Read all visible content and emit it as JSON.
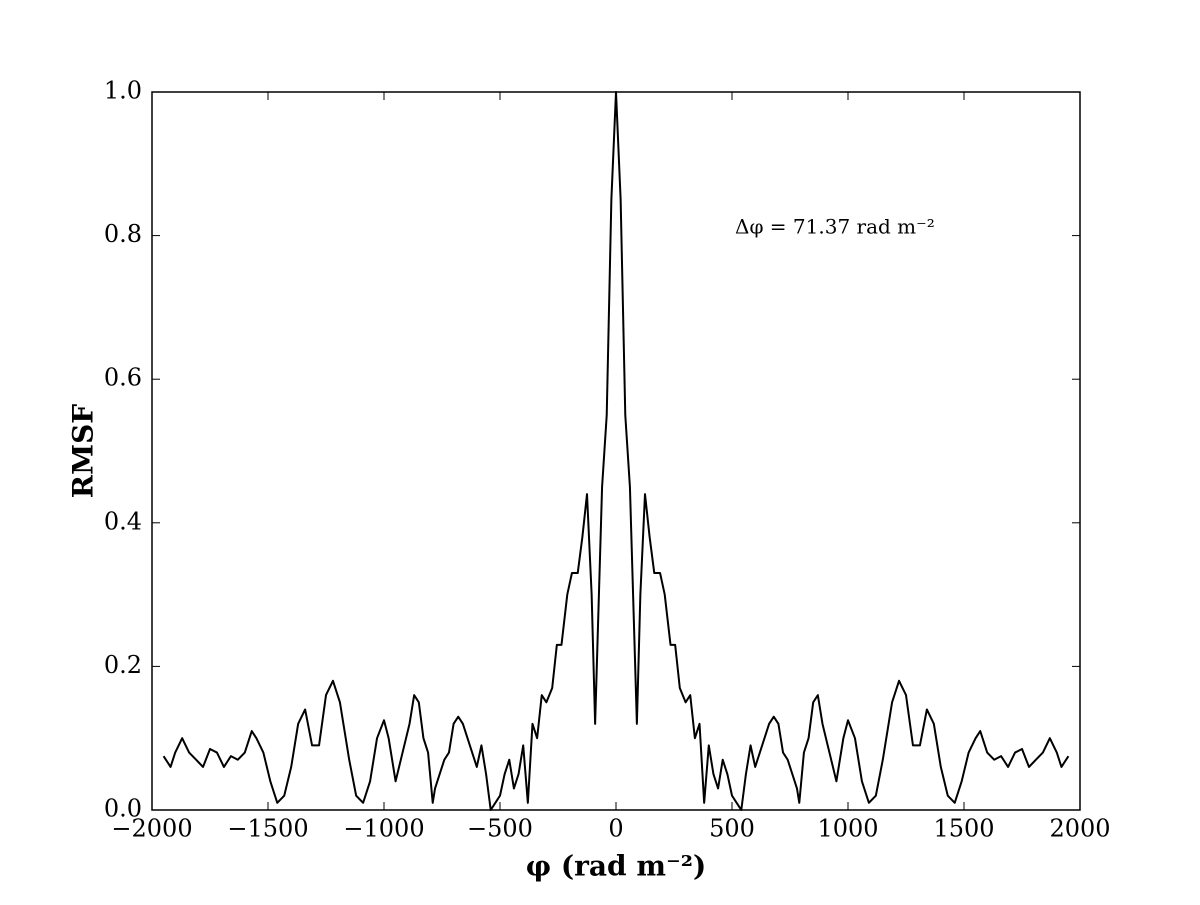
{
  "chart_data": {
    "type": "line",
    "xlabel": "φ (rad m⁻²)",
    "ylabel": "RMSF",
    "annotation": "Δφ = 71.37 rad m⁻²",
    "x": [
      -1950,
      -1920,
      -1900,
      -1870,
      -1840,
      -1810,
      -1780,
      -1750,
      -1720,
      -1690,
      -1660,
      -1630,
      -1600,
      -1570,
      -1550,
      -1520,
      -1490,
      -1460,
      -1430,
      -1400,
      -1370,
      -1340,
      -1310,
      -1280,
      -1250,
      -1220,
      -1190,
      -1150,
      -1120,
      -1090,
      -1060,
      -1030,
      -1000,
      -980,
      -950,
      -920,
      -890,
      -870,
      -850,
      -830,
      -810,
      -790,
      -780,
      -760,
      -740,
      -720,
      -700,
      -680,
      -660,
      -620,
      -600,
      -580,
      -560,
      -540,
      -520,
      -500,
      -480,
      -460,
      -440,
      -420,
      -400,
      -380,
      -360,
      -340,
      -320,
      -300,
      -275,
      -255,
      -235,
      -210,
      -190,
      -165,
      -145,
      -125,
      -105,
      -90,
      -60,
      -40,
      -20,
      0,
      20,
      40,
      60,
      90,
      105,
      125,
      145,
      165,
      190,
      210,
      235,
      255,
      275,
      300,
      320,
      340,
      360,
      380,
      400,
      420,
      440,
      460,
      480,
      500,
      520,
      540,
      560,
      580,
      600,
      620,
      660,
      680,
      700,
      720,
      740,
      760,
      780,
      790,
      810,
      830,
      850,
      870,
      890,
      920,
      950,
      980,
      1000,
      1030,
      1060,
      1090,
      1120,
      1150,
      1190,
      1220,
      1250,
      1280,
      1310,
      1340,
      1370,
      1400,
      1430,
      1460,
      1490,
      1520,
      1550,
      1570,
      1600,
      1630,
      1660,
      1690,
      1720,
      1750,
      1780,
      1810,
      1840,
      1870,
      1900,
      1920,
      1950
    ],
    "series": [
      {
        "color": "#000000",
        "values": [
          0.075,
          0.06,
          0.08,
          0.1,
          0.08,
          0.07,
          0.06,
          0.085,
          0.08,
          0.06,
          0.075,
          0.07,
          0.08,
          0.11,
          0.1,
          0.08,
          0.04,
          0.01,
          0.02,
          0.06,
          0.12,
          0.14,
          0.09,
          0.09,
          0.16,
          0.18,
          0.15,
          0.07,
          0.02,
          0.01,
          0.04,
          0.1,
          0.125,
          0.1,
          0.04,
          0.08,
          0.12,
          0.16,
          0.15,
          0.1,
          0.08,
          0.01,
          0.03,
          0.05,
          0.07,
          0.08,
          0.12,
          0.13,
          0.12,
          0.08,
          0.06,
          0.09,
          0.05,
          0.0,
          0.01,
          0.02,
          0.05,
          0.07,
          0.03,
          0.05,
          0.09,
          0.01,
          0.12,
          0.1,
          0.16,
          0.15,
          0.17,
          0.23,
          0.23,
          0.3,
          0.33,
          0.33,
          0.38,
          0.44,
          0.3,
          0.12,
          0.45,
          0.55,
          0.85,
          1.0,
          0.85,
          0.55,
          0.45,
          0.12,
          0.3,
          0.44,
          0.38,
          0.33,
          0.33,
          0.3,
          0.23,
          0.23,
          0.17,
          0.15,
          0.16,
          0.1,
          0.12,
          0.01,
          0.09,
          0.05,
          0.03,
          0.07,
          0.05,
          0.02,
          0.01,
          0.0,
          0.05,
          0.09,
          0.06,
          0.08,
          0.12,
          0.13,
          0.12,
          0.08,
          0.07,
          0.05,
          0.03,
          0.01,
          0.08,
          0.1,
          0.15,
          0.16,
          0.12,
          0.08,
          0.04,
          0.1,
          0.125,
          0.1,
          0.04,
          0.01,
          0.02,
          0.07,
          0.15,
          0.18,
          0.16,
          0.09,
          0.09,
          0.14,
          0.12,
          0.06,
          0.02,
          0.01,
          0.04,
          0.08,
          0.1,
          0.11,
          0.08,
          0.07,
          0.075,
          0.06,
          0.08,
          0.085,
          0.06,
          0.07,
          0.08,
          0.1,
          0.08,
          0.06,
          0.075
        ]
      }
    ],
    "xlim": [
      -2000,
      2000
    ],
    "xticks": [
      {
        "value": -2000,
        "label": "−2000"
      },
      {
        "value": -1500,
        "label": "−1500"
      },
      {
        "value": -1000,
        "label": "−1000"
      },
      {
        "value": -500,
        "label": "−500"
      },
      0,
      500,
      1000,
      1500,
      2000
    ],
    "ylim": [
      0,
      1
    ],
    "yticks": [
      {
        "value": 0,
        "label": "0.0"
      },
      0.2,
      0.4,
      0.6,
      0.8,
      {
        "value": 1,
        "label": "1.0"
      }
    ],
    "grid": false
  }
}
